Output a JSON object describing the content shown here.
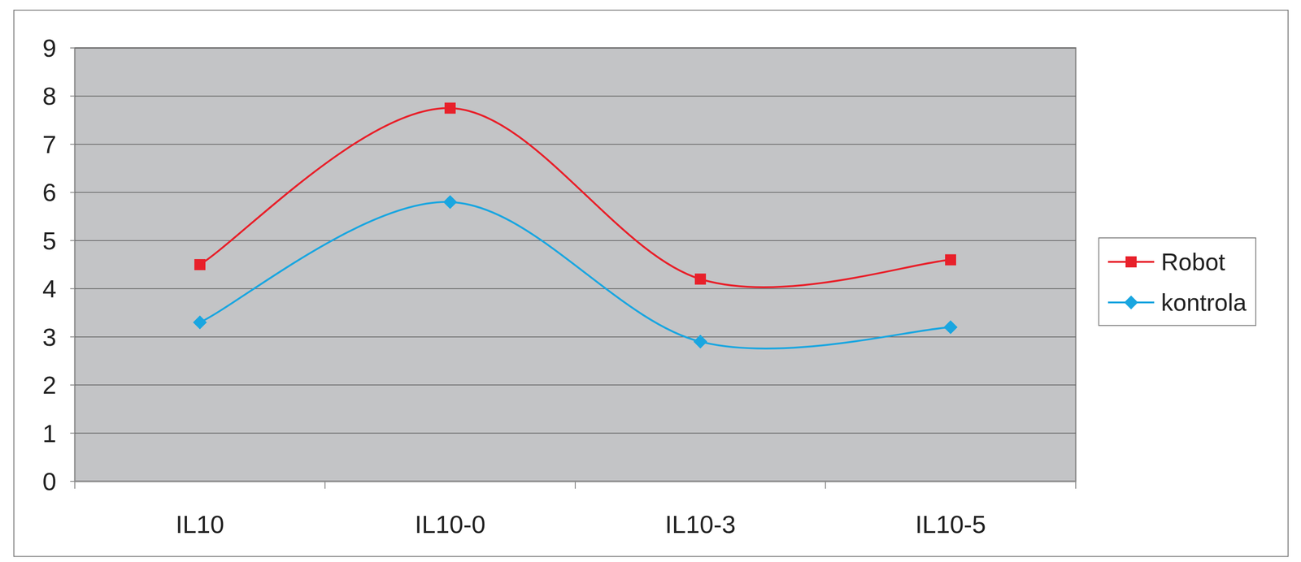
{
  "chart_data": {
    "type": "line",
    "categories": [
      "IL10",
      "IL10-0",
      "IL10-3",
      "IL10-5"
    ],
    "series": [
      {
        "name": "Robot",
        "color": "#e8202a",
        "marker": "square",
        "values": [
          4.5,
          7.75,
          4.2,
          4.6
        ]
      },
      {
        "name": "kontrola",
        "color": "#1aa6e0",
        "marker": "diamond",
        "values": [
          3.3,
          5.8,
          2.9,
          3.2
        ]
      }
    ],
    "ylim": [
      0,
      9
    ],
    "yticks": [
      0,
      1,
      2,
      3,
      4,
      5,
      6,
      7,
      8,
      9
    ],
    "grid": true,
    "legend": "right"
  }
}
